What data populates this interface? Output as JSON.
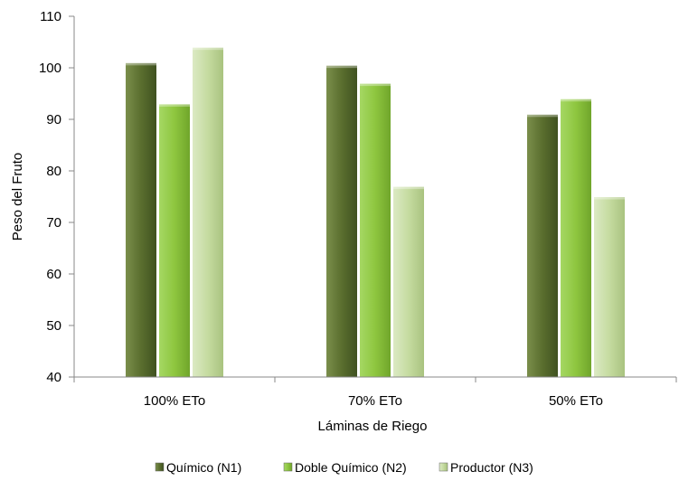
{
  "chart_data": {
    "type": "bar",
    "title": "",
    "xlabel": "Láminas de Riego",
    "ylabel": "Peso del Fruto",
    "categories": [
      "100% ETo",
      "70% ETo",
      "50% ETo"
    ],
    "series": [
      {
        "name": "Químico (N1)",
        "values": [
          101,
          100.5,
          91
        ],
        "color": "#5a6e2e"
      },
      {
        "name": "Doble Químico (N2)",
        "values": [
          93,
          97,
          94
        ],
        "color": "#8ec63f"
      },
      {
        "name": "Productor (N3)",
        "values": [
          104,
          77,
          75
        ],
        "color": "#c5dba0"
      }
    ],
    "ylim": [
      40,
      110
    ],
    "yticks": [
      40,
      50,
      60,
      70,
      80,
      90,
      100,
      110
    ],
    "grid": false,
    "legend_position": "bottom"
  }
}
